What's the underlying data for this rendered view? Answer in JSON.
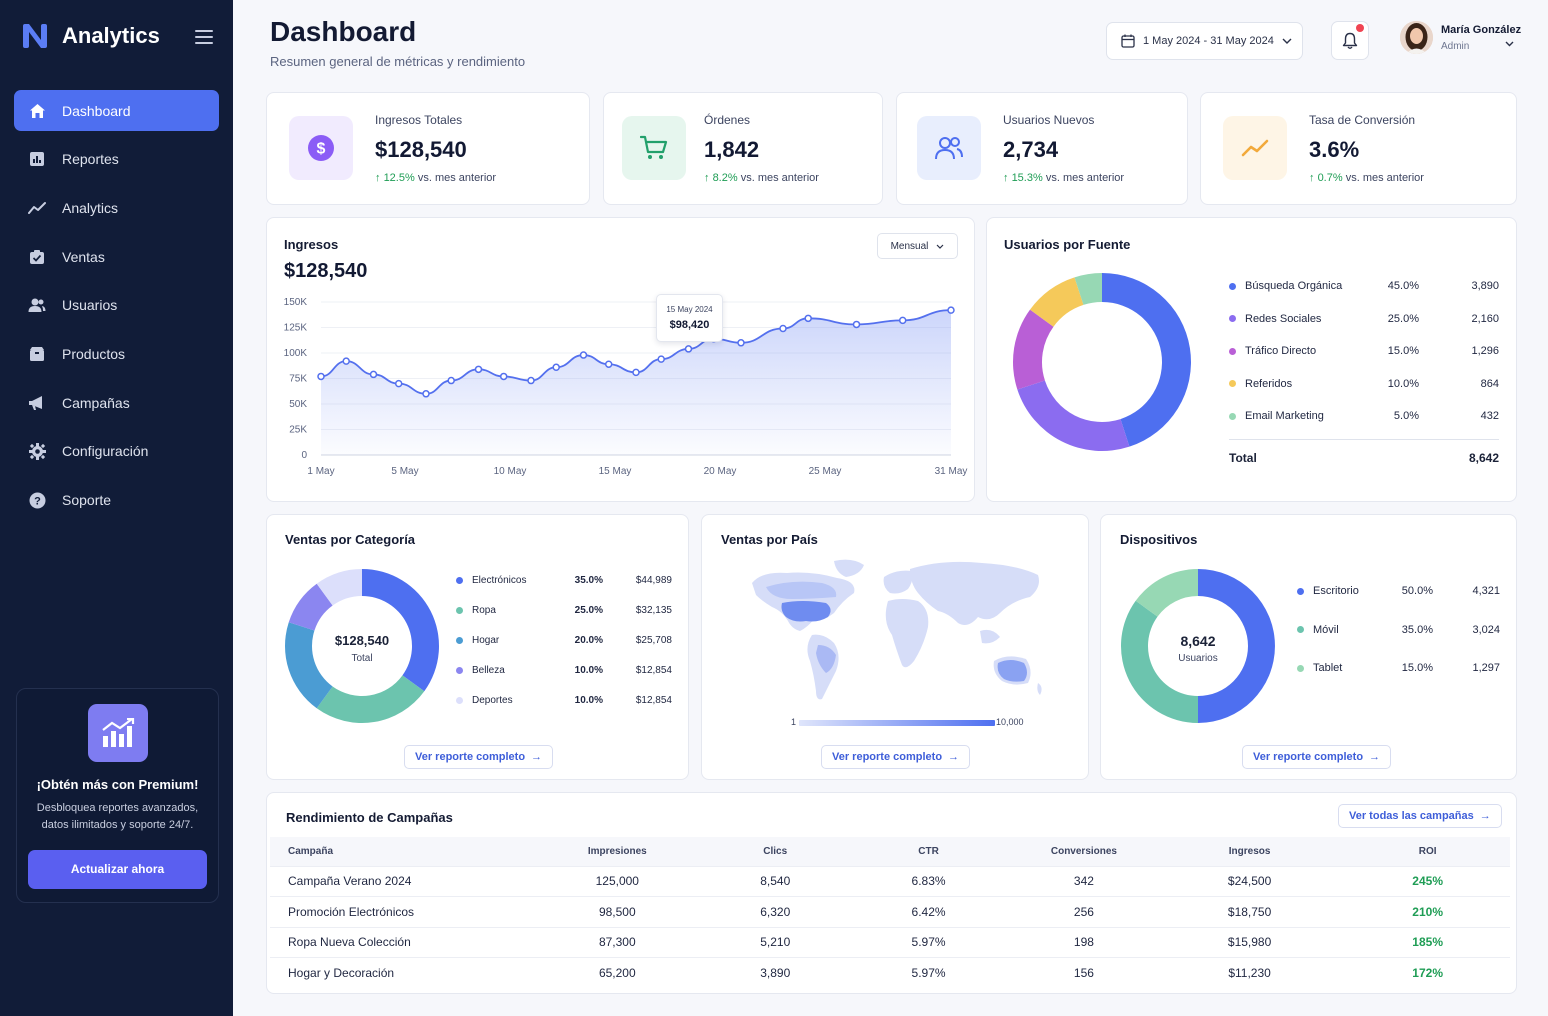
{
  "app": {
    "brand": "Analytics"
  },
  "sidebar": {
    "items": [
      {
        "label": "Dashboard",
        "icon": "home-icon",
        "active": true
      },
      {
        "label": "Reportes",
        "icon": "report-icon"
      },
      {
        "label": "Analytics",
        "icon": "trend-icon"
      },
      {
        "label": "Ventas",
        "icon": "sales-icon"
      },
      {
        "label": "Usuarios",
        "icon": "users-icon"
      },
      {
        "label": "Productos",
        "icon": "box-icon"
      },
      {
        "label": "Campañas",
        "icon": "megaphone-icon"
      },
      {
        "label": "Configuración",
        "icon": "gear-icon"
      },
      {
        "label": "Soporte",
        "icon": "help-icon"
      }
    ],
    "promo": {
      "title": "¡Obtén más con Premium!",
      "line1": "Desbloquea reportes avanzados,",
      "line2": "datos ilimitados y soporte 24/7.",
      "button": "Actualizar ahora"
    }
  },
  "header": {
    "title": "Dashboard",
    "subtitle": "Resumen general de métricas y rendimiento",
    "date_range": "1 May 2024 - 31 May 2024",
    "user_name": "María González",
    "user_role": "Admin"
  },
  "kpis": [
    {
      "label": "Ingresos Totales",
      "value": "$128,540",
      "delta": "12.5%",
      "delta_text": "vs. mes anterior",
      "icon": "dollar-icon",
      "color": "#8b5cf6"
    },
    {
      "label": "Órdenes",
      "value": "1,842",
      "delta": "8.2%",
      "delta_text": "vs. mes anterior",
      "icon": "cart-icon",
      "color": "#22a06b"
    },
    {
      "label": "Usuarios Nuevos",
      "value": "2,734",
      "delta": "15.3%",
      "delta_text": "vs. mes anterior",
      "icon": "users-icon",
      "color": "#4e6ff0"
    },
    {
      "label": "Tasa de Conversión",
      "value": "3.6%",
      "delta": "0.7%",
      "delta_text": "vs. mes anterior",
      "icon": "trend-icon",
      "color": "#f2a93b"
    }
  ],
  "revenue": {
    "title": "Ingresos",
    "value": "$128,540",
    "period": "Mensual",
    "tooltip_date": "15 May 2024",
    "tooltip_value": "$98,420"
  },
  "sources": {
    "title": "Usuarios por Fuente",
    "rows": [
      {
        "name": "Búsqueda Orgánica",
        "pct": "45.0%",
        "count": "3,890",
        "color": "#4e6ff0"
      },
      {
        "name": "Redes Sociales",
        "pct": "25.0%",
        "count": "2,160",
        "color": "#8b6cf0"
      },
      {
        "name": "Tráfico Directo",
        "pct": "15.0%",
        "count": "1,296",
        "color": "#b95fd6"
      },
      {
        "name": "Referidos",
        "pct": "10.0%",
        "count": "864",
        "color": "#f5c95a"
      },
      {
        "name": "Email Marketing",
        "pct": "5.0%",
        "count": "432",
        "color": "#97d8b4"
      }
    ],
    "total_label": "Total",
    "total": "8,642"
  },
  "categories": {
    "title": "Ventas por Categoría",
    "center_value": "$128,540",
    "center_label": "Total",
    "rows": [
      {
        "name": "Electrónicos",
        "pct": "35.0%",
        "amount": "$44,989",
        "color": "#4e6ff0"
      },
      {
        "name": "Ropa",
        "pct": "25.0%",
        "amount": "$32,135",
        "color": "#6cc4ae"
      },
      {
        "name": "Hogar",
        "pct": "20.0%",
        "amount": "$25,708",
        "color": "#4b9cd3"
      },
      {
        "name": "Belleza",
        "pct": "10.0%",
        "amount": "$12,854",
        "color": "#8b86f0"
      },
      {
        "name": "Deportes",
        "pct": "10.0%",
        "amount": "$12,854",
        "color": "#dcdffb"
      }
    ],
    "link": "Ver reporte completo"
  },
  "countries": {
    "title": "Ventas por País",
    "scale_min": "1",
    "scale_max": "10,000",
    "link": "Ver reporte completo"
  },
  "devices": {
    "title": "Dispositivos",
    "center_value": "8,642",
    "center_label": "Usuarios",
    "rows": [
      {
        "name": "Escritorio",
        "pct": "50.0%",
        "count": "4,321",
        "color": "#4e6ff0"
      },
      {
        "name": "Móvil",
        "pct": "35.0%",
        "count": "3,024",
        "color": "#6cc4ae"
      },
      {
        "name": "Tablet",
        "pct": "15.0%",
        "count": "1,297",
        "color": "#97d8b4"
      }
    ],
    "link": "Ver reporte completo"
  },
  "campaigns": {
    "title": "Rendimiento de Campañas",
    "link": "Ver todas las campañas",
    "columns": [
      "Campaña",
      "Impresiones",
      "Clics",
      "CTR",
      "Conversiones",
      "Ingresos",
      "ROI"
    ],
    "rows": [
      [
        "Campaña Verano 2024",
        "125,000",
        "8,540",
        "6.83%",
        "342",
        "$24,500",
        "245%"
      ],
      [
        "Promoción Electrónicos",
        "98,500",
        "6,320",
        "6.42%",
        "256",
        "$18,750",
        "210%"
      ],
      [
        "Ropa Nueva Colección",
        "87,300",
        "5,210",
        "5.97%",
        "198",
        "$15,980",
        "185%"
      ],
      [
        "Hogar y Decoración",
        "65,200",
        "3,890",
        "5.97%",
        "156",
        "$11,230",
        "172%"
      ]
    ]
  },
  "chart_data": [
    {
      "type": "area",
      "title": "Ingresos",
      "x_ticks": [
        "1 May",
        "5 May",
        "10 May",
        "15 May",
        "20 May",
        "25 May",
        "31 May"
      ],
      "y_ticks": [
        "0",
        "25K",
        "50K",
        "75K",
        "100K",
        "125K",
        "150K"
      ],
      "ylim": [
        0,
        150000
      ],
      "x": [
        1,
        2.2,
        3.5,
        4.7,
        6,
        7.2,
        8.5,
        9.7,
        11,
        12.2,
        13.5,
        14.7,
        16,
        17.2,
        18.5,
        19.7,
        21,
        23,
        24.2,
        26.5,
        28.7,
        31
      ],
      "y": [
        77000,
        92000,
        79000,
        70000,
        60000,
        73000,
        84000,
        77000,
        73000,
        86000,
        98000,
        89000,
        81000,
        94000,
        104000,
        114000,
        110000,
        124000,
        134000,
        128000,
        132000,
        142000
      ],
      "grid": true
    },
    {
      "type": "pie",
      "title": "Usuarios por Fuente",
      "labels": [
        "Búsqueda Orgánica",
        "Redes Sociales",
        "Tráfico Directo",
        "Referidos",
        "Email Marketing"
      ],
      "values": [
        3890,
        2160,
        1296,
        864,
        432
      ],
      "colors": [
        "#4e6ff0",
        "#8b6cf0",
        "#b95fd6",
        "#f5c95a",
        "#97d8b4"
      ]
    },
    {
      "type": "pie",
      "title": "Ventas por Categoría",
      "labels": [
        "Electrónicos",
        "Ropa",
        "Hogar",
        "Belleza",
        "Deportes"
      ],
      "values": [
        44989,
        32135,
        25708,
        12854,
        12854
      ],
      "colors": [
        "#4e6ff0",
        "#6cc4ae",
        "#4b9cd3",
        "#8b86f0",
        "#dcdffb"
      ]
    },
    {
      "type": "pie",
      "title": "Dispositivos",
      "labels": [
        "Escritorio",
        "Móvil",
        "Tablet"
      ],
      "values": [
        4321,
        3024,
        1297
      ],
      "colors": [
        "#4e6ff0",
        "#6cc4ae",
        "#97d8b4"
      ]
    }
  ]
}
